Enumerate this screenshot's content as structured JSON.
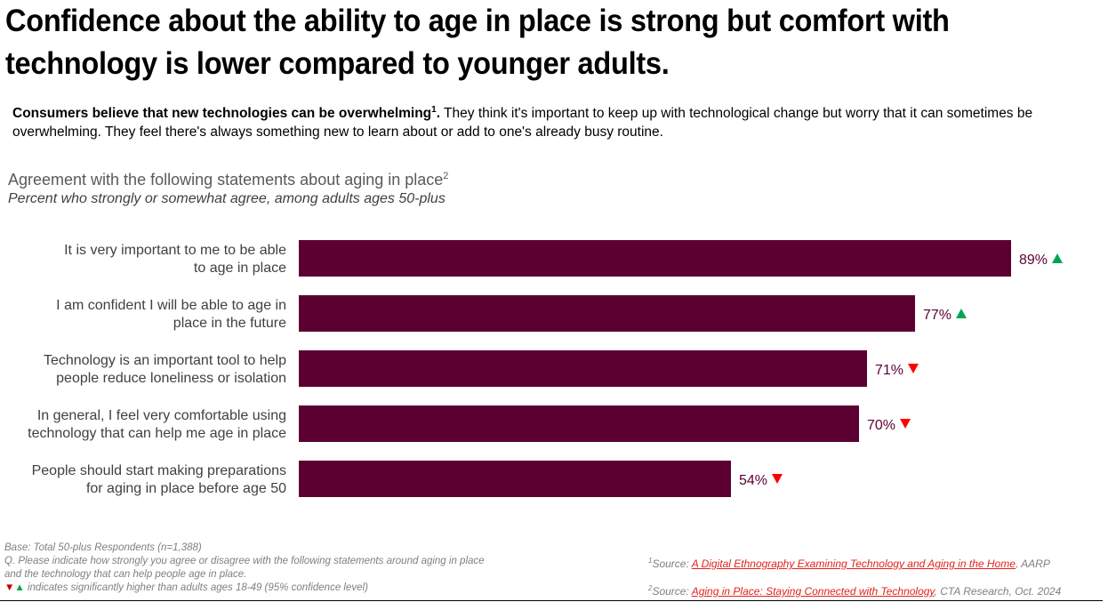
{
  "title": "Confidence about the ability to age in place is strong but comfort with technology is lower compared to younger adults.",
  "intro": {
    "bold": "Consumers believe that new technologies can be overwhelming",
    "bold_sup": "1",
    "bold_end": ".",
    "text": " They think it's important to keep up with technological change but worry that it can sometimes be overwhelming. They feel there's always something new to learn about or add to one's already busy routine."
  },
  "chart_data": {
    "type": "bar",
    "orientation": "horizontal",
    "title": "Agreement with the following statements about aging in place",
    "title_sup": "2",
    "subtitle": "Percent who strongly or somewhat agree, among adults ages 50-plus",
    "categories": [
      [
        "It is very important to me to be able",
        "to age in place"
      ],
      [
        "I am confident I will be able to age in",
        "place in the future"
      ],
      [
        "Technology is an important tool to help",
        "people reduce loneliness or isolation"
      ],
      [
        "In general, I feel very comfortable using",
        "technology that can help me age in place"
      ],
      [
        "People should start making preparations",
        "for aging in place before age 50"
      ]
    ],
    "values": [
      89,
      77,
      71,
      70,
      54
    ],
    "labels": [
      "89%",
      "77%",
      "71%",
      "70%",
      "54%"
    ],
    "significance": [
      "up",
      "up",
      "down",
      "down",
      "down"
    ],
    "xlim": [
      0,
      100
    ],
    "bar_color": "#5c0032",
    "label_color": "#5c0032",
    "up_color": "#00a651",
    "down_color": "#ff0000"
  },
  "footer": {
    "base": "Base: Total 50-plus Respondents (n=1,388)",
    "question": "Q. Please indicate how strongly you agree or disagree with the following statements around aging in place and the technology that can help people age in place.",
    "legend_up": "▲",
    "legend_down": "▼",
    "legend_text": " indicates significantly higher than adults ages 18-49 (95% confidence level)",
    "source1_sup": "1",
    "source1_prefix": "Source: ",
    "source1_link": "A Digital Ethnography Examining Technology and Aging in the Home",
    "source1_suffix": ", AARP",
    "source2_sup": "2",
    "source2_prefix": "Source: ",
    "source2_link": "Aging in Place: Staying Connected with Technology",
    "source2_suffix": ", CTA Research, Oct. 2024"
  }
}
